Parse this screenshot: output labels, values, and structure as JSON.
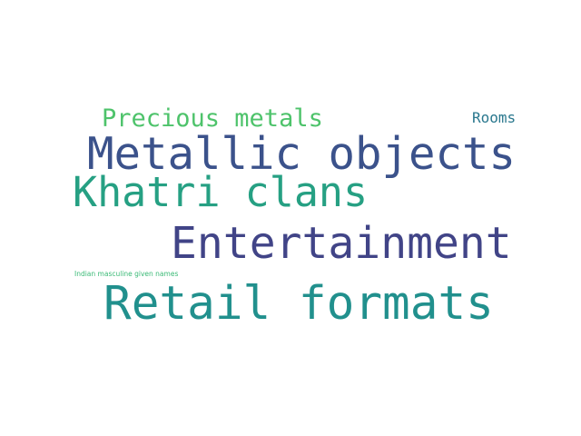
{
  "words": [
    {
      "id": "metallic_objects",
      "text": "Metallic objects",
      "color": "#3b528b"
    },
    {
      "id": "khatri_clans",
      "text": "Khatri clans",
      "color": "#26a083"
    },
    {
      "id": "entertainment",
      "text": "Entertainment",
      "color": "#414487"
    },
    {
      "id": "retail_formats",
      "text": "Retail formats",
      "color": "#21908d"
    },
    {
      "id": "precious_metals",
      "text": "Precious metals",
      "color": "#4ec36b"
    },
    {
      "id": "rooms",
      "text": "Rooms",
      "color": "#2a788e"
    },
    {
      "id": "indian_masculine_given_names",
      "text": "Indian masculine given names",
      "color": "#3aba76"
    }
  ]
}
